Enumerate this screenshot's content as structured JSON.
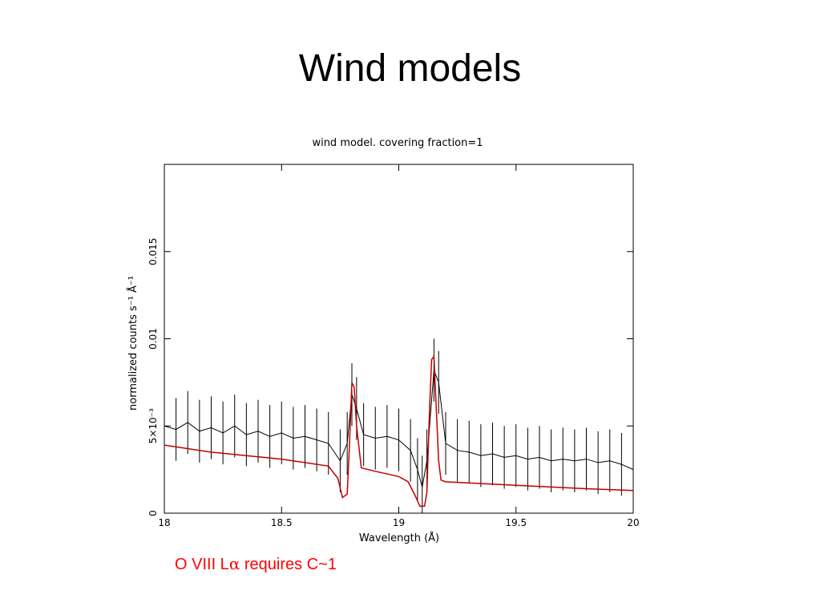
{
  "slide": {
    "title": "Wind models",
    "caption_prefix": "O VIII L",
    "caption_greek": "α",
    "caption_suffix": " requires C~1"
  },
  "chart_data": {
    "type": "line",
    "title": "wind model. covering fraction=1",
    "xlabel": "Wavelength (Å)",
    "ylabel": "normalized counts s⁻¹ Å⁻¹",
    "xlim": [
      18,
      20
    ],
    "ylim": [
      0,
      0.02
    ],
    "x_ticks": [
      {
        "value": 18,
        "label": "18"
      },
      {
        "value": 18.5,
        "label": "18.5"
      },
      {
        "value": 19,
        "label": "19"
      },
      {
        "value": 19.5,
        "label": "19.5"
      },
      {
        "value": 20,
        "label": "20"
      }
    ],
    "y_ticks": [
      {
        "value": 0,
        "label": "0"
      },
      {
        "value": 0.005,
        "label": "5×10⁻³"
      },
      {
        "value": 0.01,
        "label": "0.01"
      },
      {
        "value": 0.015,
        "label": "0.015"
      }
    ],
    "grid": false,
    "colors": {
      "data": "#000000",
      "model": "#c00000",
      "caption": "#ff0000"
    },
    "series": [
      {
        "style": "data-with-error-bars",
        "x": [
          18.0,
          18.05,
          18.1,
          18.15,
          18.2,
          18.25,
          18.3,
          18.35,
          18.4,
          18.45,
          18.5,
          18.55,
          18.6,
          18.65,
          18.7,
          18.75,
          18.78,
          18.8,
          18.82,
          18.85,
          18.9,
          18.95,
          19.0,
          19.05,
          19.08,
          19.1,
          19.12,
          19.15,
          19.17,
          19.2,
          19.25,
          19.3,
          19.35,
          19.4,
          19.45,
          19.5,
          19.55,
          19.6,
          19.65,
          19.7,
          19.75,
          19.8,
          19.85,
          19.9,
          19.95,
          20.0
        ],
        "y": [
          0.005,
          0.0048,
          0.0052,
          0.0047,
          0.0049,
          0.0046,
          0.005,
          0.0045,
          0.0047,
          0.0044,
          0.0046,
          0.0043,
          0.0044,
          0.0042,
          0.004,
          0.003,
          0.004,
          0.0068,
          0.006,
          0.0045,
          0.0043,
          0.0044,
          0.0042,
          0.0036,
          0.0025,
          0.0015,
          0.003,
          0.0082,
          0.0075,
          0.004,
          0.0036,
          0.0035,
          0.0033,
          0.0034,
          0.0032,
          0.0033,
          0.0031,
          0.0032,
          0.003,
          0.0031,
          0.003,
          0.0031,
          0.0029,
          0.003,
          0.0028,
          0.0025
        ],
        "err": 0.0018
      },
      {
        "style": "model",
        "x": [
          18.0,
          18.2,
          18.5,
          18.7,
          18.74,
          18.76,
          18.78,
          18.79,
          18.8,
          18.81,
          18.82,
          18.84,
          18.9,
          19.0,
          19.04,
          19.07,
          19.09,
          19.11,
          19.12,
          19.13,
          19.14,
          19.15,
          19.16,
          19.17,
          19.18,
          19.2,
          19.5,
          19.8,
          20.0
        ],
        "y": [
          0.0039,
          0.0035,
          0.0031,
          0.0027,
          0.002,
          0.0009,
          0.0011,
          0.004,
          0.0075,
          0.0072,
          0.005,
          0.0026,
          0.0024,
          0.0021,
          0.0018,
          0.001,
          0.0004,
          0.0004,
          0.0012,
          0.0055,
          0.0088,
          0.009,
          0.006,
          0.003,
          0.0019,
          0.0018,
          0.0016,
          0.0014,
          0.0013
        ]
      }
    ]
  }
}
